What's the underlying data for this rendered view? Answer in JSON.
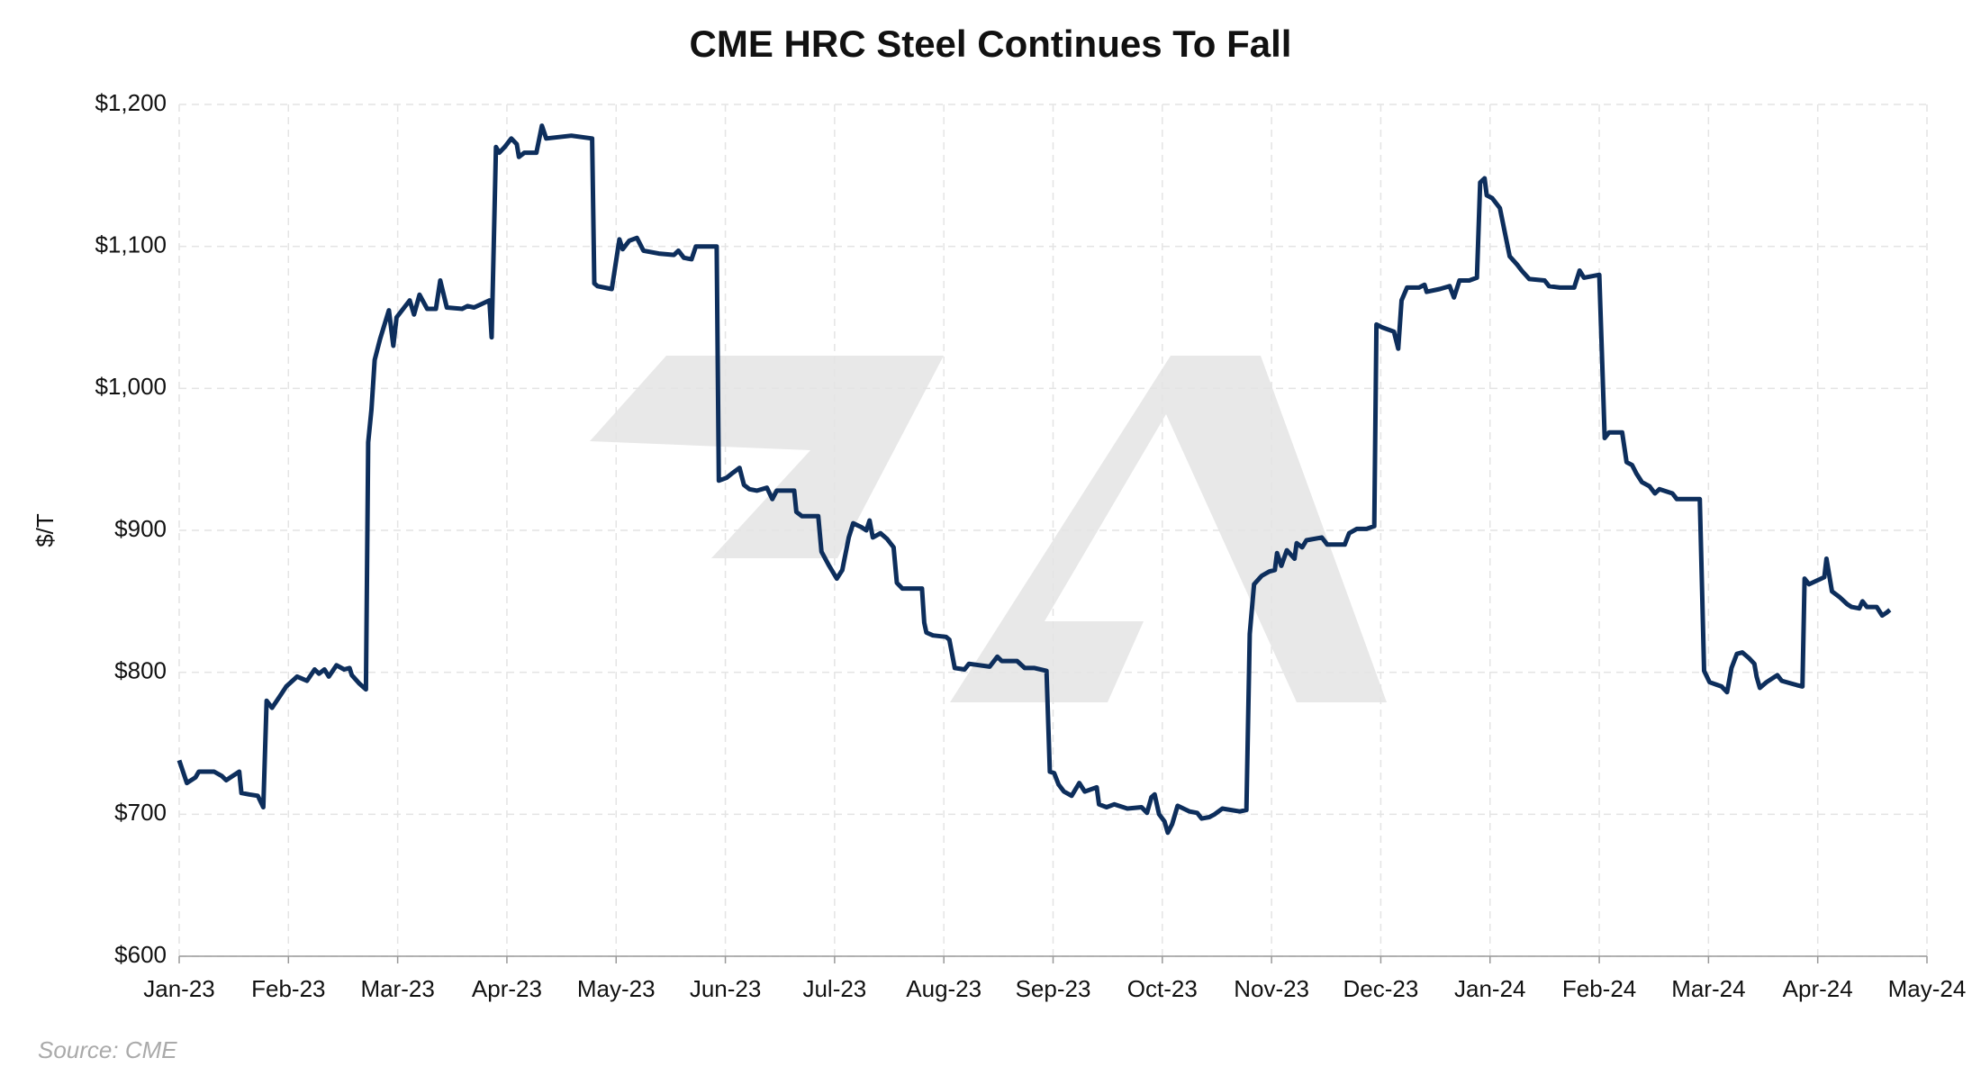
{
  "chart_data": {
    "type": "line",
    "title": "CME HRC Steel Continues To Fall",
    "y_label": "$/T",
    "source": "Source: CME",
    "grid": true,
    "xlim": [
      0,
      16
    ],
    "xticks": [
      {
        "value": 0,
        "label": "Jan-23"
      },
      {
        "value": 1,
        "label": "Feb-23"
      },
      {
        "value": 2,
        "label": "Mar-23"
      },
      {
        "value": 3,
        "label": "Apr-23"
      },
      {
        "value": 4,
        "label": "May-23"
      },
      {
        "value": 5,
        "label": "Jun-23"
      },
      {
        "value": 6,
        "label": "Jul-23"
      },
      {
        "value": 7,
        "label": "Aug-23"
      },
      {
        "value": 8,
        "label": "Sep-23"
      },
      {
        "value": 9,
        "label": "Oct-23"
      },
      {
        "value": 10,
        "label": "Nov-23"
      },
      {
        "value": 11,
        "label": "Dec-23"
      },
      {
        "value": 12,
        "label": "Jan-24"
      },
      {
        "value": 13,
        "label": "Feb-24"
      },
      {
        "value": 14,
        "label": "Mar-24"
      },
      {
        "value": 15,
        "label": "Apr-24"
      },
      {
        "value": 16,
        "label": "May-24"
      }
    ],
    "ylim": [
      600,
      1200
    ],
    "yticks": [
      {
        "value": 600,
        "label": "$600"
      },
      {
        "value": 700,
        "label": "$700"
      },
      {
        "value": 800,
        "label": "$800"
      },
      {
        "value": 900,
        "label": "$900"
      },
      {
        "value": 1000,
        "label": "$1,000"
      },
      {
        "value": 1100,
        "label": "$1,100"
      },
      {
        "value": 1200,
        "label": "$1,200"
      }
    ],
    "series": [
      {
        "name": "CME HRC Steel",
        "color": "#0d2e5c",
        "x": [
          0.0,
          0.07,
          0.15,
          0.18,
          0.32,
          0.39,
          0.43,
          0.55,
          0.57,
          0.64,
          0.72,
          0.77,
          0.8,
          0.85,
          0.92,
          0.98,
          1.08,
          1.17,
          1.24,
          1.28,
          1.33,
          1.37,
          1.44,
          1.51,
          1.56,
          1.58,
          1.65,
          1.71,
          1.73,
          1.76,
          1.79,
          1.84,
          1.92,
          1.96,
          1.99,
          2.04,
          2.11,
          2.15,
          2.2,
          2.27,
          2.35,
          2.39,
          2.45,
          2.59,
          2.64,
          2.7,
          2.84,
          2.86,
          2.9,
          2.93,
          2.98,
          3.04,
          3.09,
          3.11,
          3.16,
          3.27,
          3.32,
          3.36,
          3.59,
          3.78,
          3.8,
          3.83,
          3.96,
          4.03,
          4.06,
          4.12,
          4.19,
          4.25,
          4.39,
          4.53,
          4.57,
          4.62,
          4.69,
          4.73,
          4.92,
          4.94,
          5.01,
          5.06,
          5.13,
          5.17,
          5.22,
          5.29,
          5.38,
          5.43,
          5.47,
          5.63,
          5.65,
          5.7,
          5.85,
          5.88,
          5.95,
          6.02,
          6.07,
          6.13,
          6.17,
          6.25,
          6.29,
          6.32,
          6.35,
          6.42,
          6.48,
          6.54,
          6.57,
          6.62,
          6.8,
          6.82,
          6.84,
          6.9,
          7.02,
          7.05,
          7.1,
          7.19,
          7.23,
          7.42,
          7.49,
          7.53,
          7.67,
          7.74,
          7.83,
          7.94,
          7.97,
          8.01,
          8.05,
          8.1,
          8.17,
          8.24,
          8.29,
          8.4,
          8.42,
          8.49,
          8.56,
          8.68,
          8.81,
          8.86,
          8.9,
          8.93,
          8.97,
          9.02,
          9.05,
          9.09,
          9.14,
          9.25,
          9.32,
          9.36,
          9.43,
          9.48,
          9.55,
          9.71,
          9.77,
          9.8,
          9.84,
          9.91,
          9.98,
          10.03,
          10.05,
          10.09,
          10.14,
          10.21,
          10.23,
          10.28,
          10.32,
          10.46,
          10.51,
          10.67,
          10.71,
          10.78,
          10.87,
          10.94,
          10.96,
          11.01,
          11.12,
          11.16,
          11.19,
          11.24,
          11.35,
          11.4,
          11.42,
          11.54,
          11.63,
          11.67,
          11.72,
          11.81,
          11.88,
          11.91,
          11.95,
          11.97,
          12.02,
          12.09,
          12.13,
          12.18,
          12.25,
          12.29,
          12.36,
          12.5,
          12.54,
          12.64,
          12.77,
          12.82,
          12.86,
          13.0,
          13.05,
          13.09,
          13.21,
          13.25,
          13.3,
          13.34,
          13.39,
          13.46,
          13.51,
          13.55,
          13.67,
          13.71,
          13.92,
          13.96,
          14.01,
          14.12,
          14.17,
          14.21,
          14.26,
          14.31,
          14.37,
          14.42,
          14.44,
          14.47,
          14.53,
          14.63,
          14.67,
          14.81,
          14.86,
          14.88,
          14.92,
          15.06,
          15.08,
          15.13,
          15.2,
          15.27,
          15.31,
          15.38,
          15.41,
          15.45,
          15.54,
          15.59,
          15.63,
          15.66
        ],
        "values": [
          738,
          722,
          726,
          730,
          730,
          727,
          724,
          730,
          715,
          714,
          713,
          705,
          780,
          775,
          783,
          790,
          797,
          794,
          802,
          799,
          802,
          797,
          805,
          802,
          803,
          798,
          792,
          788,
          962,
          985,
          1020,
          1035,
          1055,
          1030,
          1050,
          1055,
          1062,
          1052,
          1066,
          1056,
          1056,
          1076,
          1057,
          1056,
          1058,
          1057,
          1062,
          1036,
          1170,
          1166,
          1170,
          1176,
          1172,
          1163,
          1166,
          1166,
          1185,
          1176,
          1178,
          1176,
          1074,
          1072,
          1070,
          1105,
          1098,
          1104,
          1106,
          1097,
          1095,
          1094,
          1097,
          1092,
          1091,
          1100,
          1100,
          935,
          937,
          940,
          944,
          932,
          929,
          928,
          930,
          922,
          928,
          928,
          913,
          910,
          910,
          885,
          875,
          866,
          872,
          895,
          905,
          902,
          900,
          907,
          895,
          898,
          894,
          888,
          863,
          859,
          859,
          835,
          828,
          826,
          825,
          823,
          803,
          802,
          806,
          804,
          811,
          808,
          808,
          803,
          803,
          801,
          730,
          729,
          721,
          716,
          713,
          722,
          716,
          719,
          707,
          705,
          707,
          704,
          705,
          701,
          712,
          714,
          700,
          695,
          687,
          693,
          706,
          702,
          701,
          697,
          698,
          700,
          704,
          702,
          703,
          827,
          862,
          868,
          871,
          872,
          884,
          875,
          886,
          880,
          891,
          888,
          893,
          895,
          890,
          890,
          898,
          901,
          901,
          903,
          1045,
          1043,
          1040,
          1028,
          1062,
          1071,
          1071,
          1073,
          1068,
          1070,
          1072,
          1064,
          1076,
          1076,
          1078,
          1145,
          1148,
          1136,
          1134,
          1127,
          1112,
          1093,
          1087,
          1083,
          1077,
          1076,
          1072,
          1071,
          1071,
          1083,
          1078,
          1080,
          965,
          969,
          969,
          948,
          946,
          940,
          934,
          931,
          926,
          929,
          926,
          922,
          922,
          801,
          793,
          790,
          786,
          803,
          813,
          814,
          810,
          806,
          797,
          789,
          793,
          798,
          794,
          791,
          790,
          866,
          862,
          867,
          880,
          857,
          853,
          848,
          846,
          845,
          850,
          846,
          846,
          840,
          842,
          844
        ]
      }
    ]
  }
}
